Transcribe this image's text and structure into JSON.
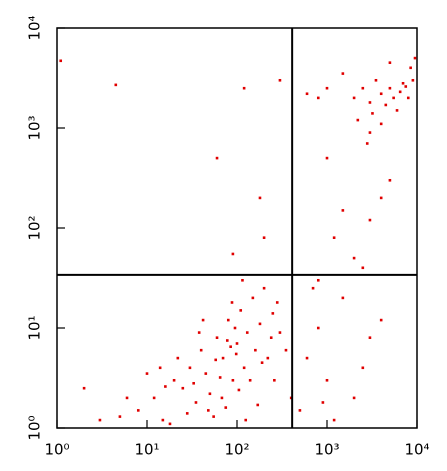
{
  "chart_data": {
    "type": "scatter",
    "color": "#e00000",
    "xscale": "log",
    "yscale": "log",
    "xlim": [
      1,
      10000
    ],
    "ylim": [
      1,
      10000
    ],
    "xticks": [
      {
        "value": 1,
        "label": "10⁰"
      },
      {
        "value": 10,
        "label": "10¹"
      },
      {
        "value": 100,
        "label": "10²"
      },
      {
        "value": 1000,
        "label": "10³"
      },
      {
        "value": 10000,
        "label": "10⁴"
      }
    ],
    "yticks": [
      {
        "value": 1,
        "label": "10⁰"
      },
      {
        "value": 10,
        "label": "10¹"
      },
      {
        "value": 100,
        "label": "10²"
      },
      {
        "value": 1000,
        "label": "10³"
      },
      {
        "value": 10000,
        "label": "10⁴"
      }
    ],
    "gates": {
      "x": 410,
      "y": 34
    },
    "x": [
      8,
      12,
      15,
      20,
      25,
      30,
      35,
      40,
      45,
      50,
      60,
      70,
      80,
      90,
      100,
      110,
      120,
      130,
      150,
      160,
      180,
      200,
      220,
      250,
      300,
      18,
      22,
      28,
      33,
      38,
      55,
      65,
      75,
      85,
      95,
      105,
      140,
      170,
      190,
      240,
      6,
      5,
      10,
      14,
      16,
      42,
      48,
      58,
      68,
      78,
      88,
      98,
      115,
      125,
      260,
      280,
      350,
      400,
      3,
      2,
      500,
      600,
      800,
      1000,
      1500,
      2000,
      3000,
      700,
      1200,
      2500,
      4000,
      900,
      2000,
      2500,
      3000,
      3500,
      4000,
      5000,
      6000,
      7000,
      8000,
      9000,
      2200,
      3200,
      4500,
      5500,
      6500,
      7500,
      1500,
      1000,
      800,
      8500,
      9500,
      3000,
      4000,
      2800,
      5000,
      600,
      1500,
      2000,
      3000,
      800,
      4000,
      1000,
      5000,
      1200,
      2500,
      1.1,
      4.5,
      60,
      120,
      300,
      180,
      90,
      200
    ],
    "y": [
      1.5,
      2,
      1.2,
      3,
      2.5,
      4,
      1.8,
      6,
      3.5,
      2.2,
      8,
      5,
      12,
      3,
      7,
      15,
      4,
      9,
      20,
      6,
      11,
      25,
      5,
      14,
      9,
      1.1,
      5,
      1.4,
      2.8,
      9,
      1.3,
      3.2,
      1.6,
      6.5,
      10,
      2.4,
      3,
      1.7,
      4.5,
      8,
      2,
      1.3,
      3.5,
      4,
      2.6,
      12,
      1.5,
      4.8,
      2,
      7.5,
      18,
      5.5,
      30,
      1.2,
      3,
      18,
      6,
      2,
      1.2,
      2.5,
      1.5,
      5,
      10,
      3,
      20,
      2,
      8,
      25,
      1.2,
      4,
      12,
      1.8,
      2000,
      2500,
      1800,
      3000,
      2200,
      2500,
      1500,
      2800,
      2000,
      3000,
      1200,
      1400,
      1700,
      2000,
      2300,
      2600,
      3500,
      2500,
      2000,
      4000,
      5000,
      900,
      1100,
      700,
      4500,
      2200,
      150,
      50,
      120,
      30,
      200,
      500,
      300,
      80,
      40,
      4700,
      2700,
      500,
      2500,
      3000,
      200,
      55,
      80
    ]
  }
}
